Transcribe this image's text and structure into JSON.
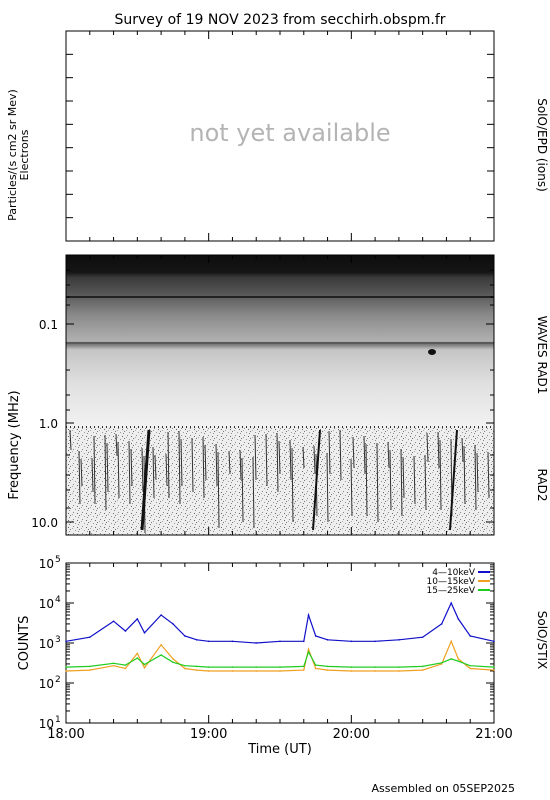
{
  "title": "Survey of 19 NOV 2023 from secchirh.obspm.fr",
  "footer": "Assembled on 05SEP2025",
  "colors": {
    "background": "#ffffff",
    "axis": "#000000",
    "placeholder_text": "#b4b4b4",
    "series_low": "#1010c8",
    "series_mid": "#f0a020",
    "series_high": "#20cc20"
  },
  "panel_epd": {
    "ylabel_line1": "Particles/(s cm2 sr Mev)",
    "ylabel_line2": "Electrons",
    "right_label": "SolO/EPD (ions)",
    "placeholder": "not yet available"
  },
  "panel_waves": {
    "ylabel": "Frequency (MHz)",
    "right_label_rad1": "WAVES RAD1",
    "right_label_rad2": "RAD2",
    "yticks": [
      "0.1",
      "1.0",
      "10.0"
    ]
  },
  "panel_stix": {
    "ylabel": "COUNTS",
    "right_label": "SolO/STIX",
    "ytick_base": "10",
    "ytick_exponents": [
      "1",
      "2",
      "3",
      "4",
      "5"
    ],
    "legend": [
      "4—10keV",
      "10—15keV",
      "15—25keV"
    ]
  },
  "x_axis": {
    "label": "Time (UT)",
    "ticks": [
      "18:00",
      "19:00",
      "20:00",
      "21:00"
    ]
  },
  "chart_data": {
    "type": "line",
    "title": "Survey of 19 NOV 2023 from secchirh.obspm.fr",
    "xlabel": "Time (UT)",
    "ylabel": "COUNTS",
    "yscale": "log",
    "ylim": [
      10,
      100000
    ],
    "xlim": [
      "18:00",
      "21:00"
    ],
    "x": [
      "18:00",
      "18:10",
      "18:20",
      "18:25",
      "18:30",
      "18:33",
      "18:40",
      "18:45",
      "18:50",
      "18:55",
      "19:00",
      "19:10",
      "19:20",
      "19:30",
      "19:40",
      "19:42",
      "19:45",
      "19:50",
      "20:00",
      "20:10",
      "20:20",
      "20:30",
      "20:38",
      "20:42",
      "20:45",
      "20:50",
      "21:00"
    ],
    "series": [
      {
        "name": "4—10keV",
        "color": "#1010c8",
        "values": [
          1100,
          1400,
          3500,
          2000,
          4000,
          1800,
          5000,
          3000,
          1500,
          1200,
          1100,
          1100,
          1000,
          1100,
          1100,
          5000,
          1500,
          1200,
          1100,
          1100,
          1200,
          1400,
          3000,
          10000,
          4000,
          1500,
          1100
        ]
      },
      {
        "name": "10—15keV",
        "color": "#f0a020",
        "values": [
          200,
          210,
          270,
          230,
          550,
          240,
          900,
          400,
          230,
          210,
          200,
          200,
          200,
          200,
          210,
          700,
          230,
          210,
          200,
          200,
          200,
          210,
          300,
          1100,
          400,
          230,
          210
        ]
      },
      {
        "name": "15—25keV",
        "color": "#20cc20",
        "values": [
          250,
          260,
          310,
          280,
          420,
          290,
          500,
          330,
          270,
          260,
          250,
          250,
          250,
          250,
          260,
          600,
          280,
          260,
          250,
          250,
          250,
          260,
          320,
          400,
          350,
          270,
          250
        ]
      }
    ]
  }
}
